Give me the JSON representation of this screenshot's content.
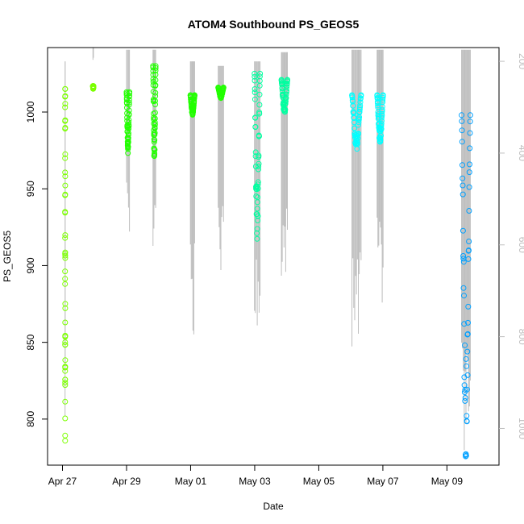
{
  "chart_data": {
    "type": "scatter",
    "title": "ATOM4 Southbound PS_GEOS5",
    "xlabel": "Date",
    "ylabel": "PS_GEOS5",
    "xlim": [
      "2016-04-26T12:50",
      "2016-05-10T15:00"
    ],
    "ylim": [
      770,
      1042
    ],
    "y2lim": [
      1080,
      170
    ],
    "y2_reversed": true,
    "x_tick_labels": [
      "Apr 27",
      "Apr 29",
      "May 01",
      "May 03",
      "May 05",
      "May 07",
      "May 09"
    ],
    "x_ticks": [
      "2016-04-27",
      "2016-04-29",
      "2016-05-01",
      "2016-05-03",
      "2016-05-05",
      "2016-05-07",
      "2016-05-09"
    ],
    "y_ticks": [
      800,
      850,
      900,
      950,
      1000
    ],
    "y2_ticks": [
      200,
      400,
      600,
      800,
      1000
    ],
    "grid": false,
    "point_style": "open-circle",
    "pressure_trace_color": "#bebebe",
    "series": [
      {
        "color": "#7cff00",
        "start": "2016-04-27T01:55",
        "end": "2016-04-27T02:05",
        "ps_range": [
          780,
          1015
        ],
        "alt_range": [
          200,
          1080
        ]
      },
      {
        "color": "#7cff00",
        "start": "2016-04-27T22:50",
        "end": "2016-04-27T23:10",
        "ps_range": [
          1015,
          1017
        ],
        "alt_range": [
          170,
          200
        ]
      },
      {
        "color": "#22ff00",
        "start": "2016-04-29T00:00",
        "end": "2016-04-29T02:10",
        "ps_range": [
          972,
          1013
        ],
        "alt_range": [
          175,
          600
        ]
      },
      {
        "color": "#22ff00",
        "start": "2016-04-29T19:50",
        "end": "2016-04-29T21:50",
        "ps_range": [
          966,
          1030
        ],
        "alt_range": [
          175,
          670
        ]
      },
      {
        "color": "#22ff00",
        "start": "2016-04-30T23:50",
        "end": "2016-05-01T03:00",
        "ps_range": [
          998,
          1011
        ],
        "alt_range": [
          200,
          800
        ]
      },
      {
        "color": "#22ff00",
        "start": "2016-05-01T20:40",
        "end": "2016-05-02T00:40",
        "ps_range": [
          1009,
          1016
        ],
        "alt_range": [
          210,
          670
        ]
      },
      {
        "color": "#00ffa0",
        "start": "2016-05-02T23:50",
        "end": "2016-05-03T04:00",
        "ps_range": [
          912,
          1025
        ],
        "alt_range": [
          200,
          820
        ]
      },
      {
        "color": "#00ffa0",
        "start": "2016-05-03T20:00",
        "end": "2016-05-04T00:30",
        "ps_range": [
          998,
          1021
        ],
        "alt_range": [
          180,
          700
        ]
      },
      {
        "color": "#00ffff",
        "start": "2016-05-06T00:50",
        "end": "2016-05-06T07:40",
        "ps_range": [
          975,
          1011
        ],
        "alt_range": [
          175,
          830
        ]
      },
      {
        "color": "#00ffff",
        "start": "2016-05-06T19:40",
        "end": "2016-05-07T00:10",
        "ps_range": [
          979,
          1011
        ],
        "alt_range": [
          175,
          730
        ]
      },
      {
        "color": "#00a0ff",
        "start": "2016-05-09T11:00",
        "end": "2016-05-09T17:30",
        "ps_range": [
          772,
          998
        ],
        "alt_range": [
          175,
          1080
        ]
      }
    ]
  }
}
